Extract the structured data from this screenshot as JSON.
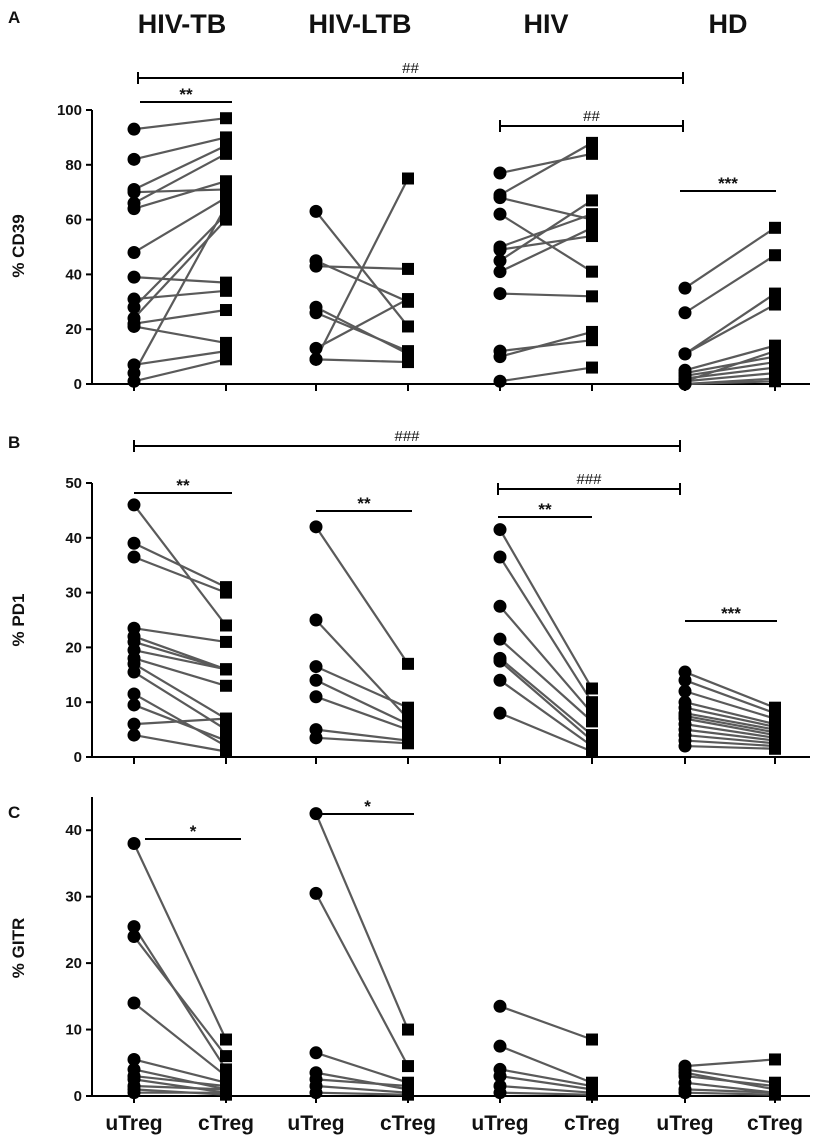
{
  "chart_data": [
    {
      "type": "scatter",
      "panel": "A",
      "ylabel": "% CD39",
      "ylim": [
        0,
        100
      ],
      "yticks": [
        0,
        20,
        40,
        60,
        80,
        100
      ],
      "x_categories": [
        "uTreg",
        "cTreg",
        "uTreg",
        "cTreg",
        "uTreg",
        "cTreg",
        "uTreg",
        "cTreg"
      ],
      "groups": [
        {
          "name": "HIV-TB",
          "pairs": [
            [
              93,
              97
            ],
            [
              82,
              90
            ],
            [
              71,
              87
            ],
            [
              70,
              71
            ],
            [
              66,
              84
            ],
            [
              64,
              74
            ],
            [
              48,
              68
            ],
            [
              39,
              37
            ],
            [
              31,
              34
            ],
            [
              28,
              62
            ],
            [
              24,
              60
            ],
            [
              22,
              27
            ],
            [
              21,
              15
            ],
            [
              7,
              12
            ],
            [
              4,
              65
            ],
            [
              1,
              9
            ]
          ]
        },
        {
          "name": "HIV-LTB",
          "pairs": [
            [
              63,
              21
            ],
            [
              45,
              30
            ],
            [
              43,
              42
            ],
            [
              28,
              11
            ],
            [
              26,
              12
            ],
            [
              13,
              31
            ],
            [
              9,
              75
            ],
            [
              9,
              8
            ]
          ]
        },
        {
          "name": "HIV",
          "pairs": [
            [
              77,
              84
            ],
            [
              69,
              88
            ],
            [
              68,
              60
            ],
            [
              62,
              41
            ],
            [
              50,
              62
            ],
            [
              49,
              54
            ],
            [
              45,
              67
            ],
            [
              41,
              57
            ],
            [
              33,
              32
            ],
            [
              12,
              16
            ],
            [
              10,
              19
            ],
            [
              1,
              6
            ]
          ]
        },
        {
          "name": "HD",
          "pairs": [
            [
              35,
              57
            ],
            [
              26,
              47
            ],
            [
              11,
              29
            ],
            [
              11,
              33
            ],
            [
              5,
              14
            ],
            [
              4,
              10
            ],
            [
              3,
              8
            ],
            [
              2,
              6
            ],
            [
              1,
              12
            ],
            [
              1,
              4
            ],
            [
              0,
              2
            ],
            [
              0,
              1
            ]
          ]
        }
      ],
      "brackets": [
        {
          "from": 0,
          "to": 1,
          "label": "**"
        },
        {
          "from": 0,
          "to": 6,
          "label": "##"
        },
        {
          "from": 4,
          "to": 6,
          "label": "##"
        },
        {
          "from": 6,
          "to": 7,
          "label": "***"
        }
      ]
    },
    {
      "type": "scatter",
      "panel": "B",
      "ylabel": "% PD1",
      "ylim": [
        0,
        50
      ],
      "yticks": [
        0,
        10,
        20,
        30,
        40,
        50
      ],
      "x_categories": [
        "uTreg",
        "cTreg",
        "uTreg",
        "cTreg",
        "uTreg",
        "cTreg",
        "uTreg",
        "cTreg"
      ],
      "groups": [
        {
          "name": "HIV-TB",
          "pairs": [
            [
              46,
              24
            ],
            [
              39,
              31
            ],
            [
              36.5,
              30
            ],
            [
              23.5,
              21
            ],
            [
              22,
              16
            ],
            [
              21,
              16
            ],
            [
              19.5,
              16
            ],
            [
              18,
              13
            ],
            [
              17,
              7
            ],
            [
              15.5,
              5
            ],
            [
              11.5,
              2
            ],
            [
              9.5,
              3
            ],
            [
              6,
              7
            ],
            [
              4,
              1
            ]
          ]
        },
        {
          "name": "HIV-LTB",
          "pairs": [
            [
              42,
              17
            ],
            [
              25,
              7
            ],
            [
              16.5,
              9
            ],
            [
              14,
              6
            ],
            [
              11,
              5
            ],
            [
              5,
              3
            ],
            [
              3.5,
              2.5
            ]
          ]
        },
        {
          "name": "HIV",
          "pairs": [
            [
              41.5,
              12.5
            ],
            [
              36.5,
              10
            ],
            [
              27.5,
              8
            ],
            [
              21.5,
              6.5
            ],
            [
              18,
              4
            ],
            [
              17.5,
              3
            ],
            [
              14,
              2
            ],
            [
              8,
              1
            ]
          ]
        },
        {
          "name": "HD",
          "pairs": [
            [
              15.5,
              9
            ],
            [
              14,
              8
            ],
            [
              12,
              7
            ],
            [
              10,
              6
            ],
            [
              9,
              5.5
            ],
            [
              8,
              5
            ],
            [
              7.5,
              4.5
            ],
            [
              7,
              4
            ],
            [
              6,
              3.5
            ],
            [
              5,
              3
            ],
            [
              4,
              2.5
            ],
            [
              3,
              2
            ],
            [
              2,
              1.5
            ]
          ]
        }
      ],
      "brackets": [
        {
          "from": 0,
          "to": 1,
          "label": "**"
        },
        {
          "from": 0,
          "to": 6,
          "label": "###"
        },
        {
          "from": 2,
          "to": 3,
          "label": "**"
        },
        {
          "from": 4,
          "to": 6,
          "label": "###"
        },
        {
          "from": 4,
          "to": 5,
          "label": "**"
        },
        {
          "from": 6,
          "to": 7,
          "label": "***"
        }
      ]
    },
    {
      "type": "scatter",
      "panel": "C",
      "ylabel": "% GITR",
      "ylim": [
        0,
        45
      ],
      "yticks": [
        0,
        10,
        20,
        30,
        40
      ],
      "x_categories": [
        "uTreg",
        "cTreg",
        "uTreg",
        "cTreg",
        "uTreg",
        "cTreg",
        "uTreg",
        "cTreg"
      ],
      "groups": [
        {
          "name": "HIV-TB",
          "pairs": [
            [
              38,
              8.5
            ],
            [
              25.5,
              4
            ],
            [
              24,
              6
            ],
            [
              14,
              3
            ],
            [
              5.5,
              2
            ],
            [
              4,
              1
            ],
            [
              3,
              1.5
            ],
            [
              2.5,
              0.5
            ],
            [
              1.5,
              1
            ],
            [
              1,
              0.2
            ],
            [
              0.5,
              0.5
            ]
          ]
        },
        {
          "name": "HIV-LTB",
          "pairs": [
            [
              42.5,
              10
            ],
            [
              30.5,
              4.5
            ],
            [
              6.5,
              2
            ],
            [
              3.5,
              1
            ],
            [
              2.5,
              1.5
            ],
            [
              1.5,
              0.5
            ],
            [
              0.5,
              0.2
            ]
          ]
        },
        {
          "name": "HIV",
          "pairs": [
            [
              13.5,
              8.5
            ],
            [
              7.5,
              2
            ],
            [
              4,
              1.5
            ],
            [
              3,
              1
            ],
            [
              1.5,
              0.5
            ],
            [
              0.5,
              0.2
            ]
          ]
        },
        {
          "name": "HD",
          "pairs": [
            [
              4.5,
              5.5
            ],
            [
              4,
              2
            ],
            [
              3.5,
              1
            ],
            [
              3,
              1.5
            ],
            [
              2,
              0.5
            ],
            [
              1,
              0.5
            ],
            [
              0.5,
              0.2
            ]
          ]
        }
      ],
      "brackets": [
        {
          "from": 0,
          "to": 1,
          "label": "*"
        },
        {
          "from": 2,
          "to": 3,
          "label": "*"
        }
      ]
    }
  ]
}
